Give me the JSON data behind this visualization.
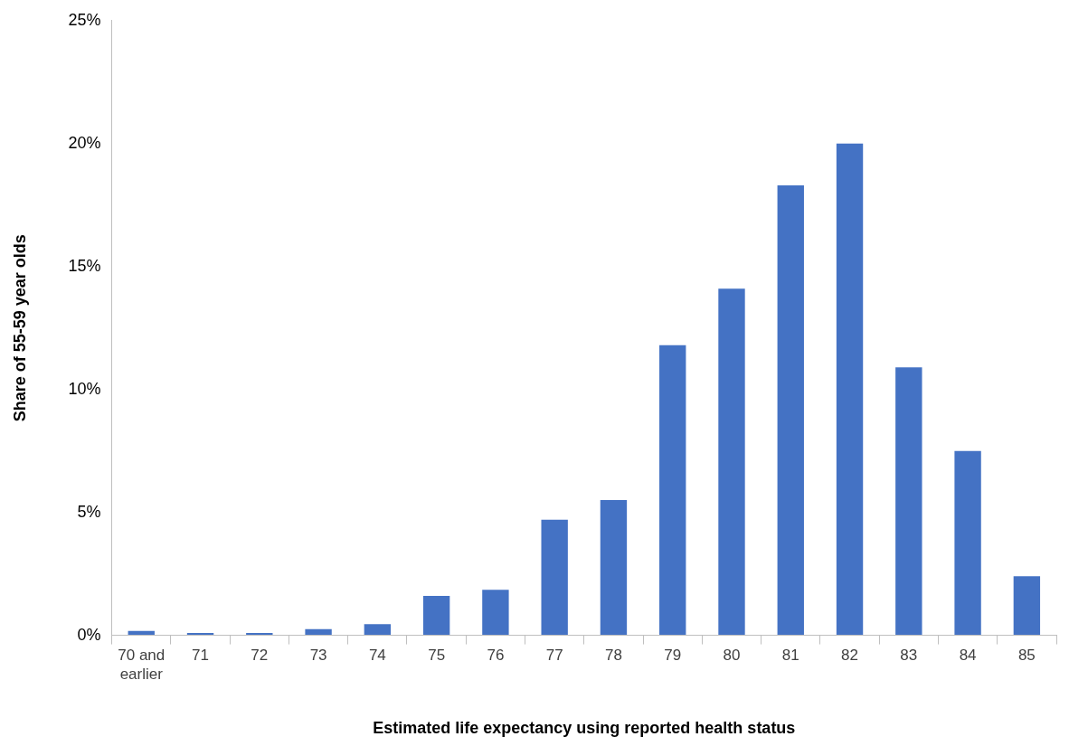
{
  "chart_data": {
    "type": "bar",
    "xlabel": "Estimated life expectancy using reported health status",
    "ylabel": "Share of 55-59 year olds",
    "categories": [
      "70 and earlier",
      "71",
      "72",
      "73",
      "74",
      "75",
      "76",
      "77",
      "78",
      "79",
      "80",
      "81",
      "82",
      "83",
      "84",
      "85"
    ],
    "values": [
      0.18,
      0.1,
      0.1,
      0.25,
      0.45,
      1.6,
      1.85,
      4.7,
      5.5,
      11.8,
      14.1,
      18.3,
      20.0,
      10.9,
      7.5,
      2.4
    ],
    "color": "#4472c4",
    "ylim": [
      0,
      25
    ],
    "yticks": [
      {
        "value": 0,
        "label": "0%"
      },
      {
        "value": 5,
        "label": "5%"
      },
      {
        "value": 10,
        "label": "10%"
      },
      {
        "value": 15,
        "label": "15%"
      },
      {
        "value": 20,
        "label": "20%"
      },
      {
        "value": 25,
        "label": "25%"
      }
    ],
    "grid": false,
    "legend": false
  }
}
